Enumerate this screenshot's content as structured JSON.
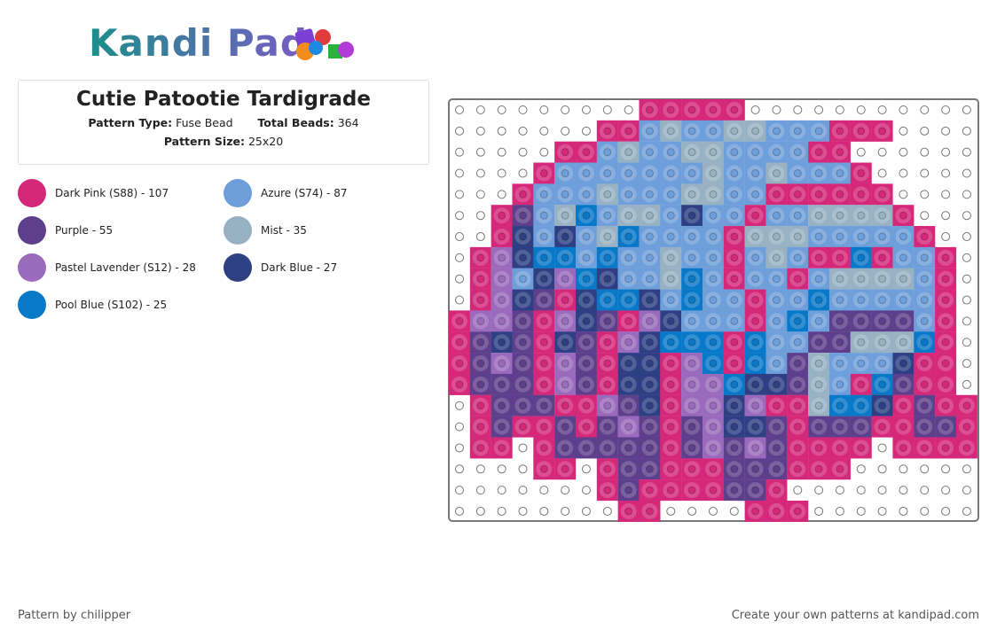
{
  "logo": "Kandi Pad",
  "header": {
    "title": "Cutie Patootie Tardigrade",
    "pattern_type_label": "Pattern Type:",
    "pattern_type": "Fuse Bead",
    "total_beads_label": "Total Beads:",
    "total_beads": "364",
    "pattern_size_label": "Pattern Size:",
    "pattern_size": "25x20"
  },
  "legend": [
    {
      "label": "Dark Pink (S88) - 107",
      "color": "#d6287a"
    },
    {
      "label": "Azure (S74) - 87",
      "color": "#6f9fdb"
    },
    {
      "label": "Purple - 55",
      "color": "#5e3f8c"
    },
    {
      "label": "Mist - 35",
      "color": "#98b2c4"
    },
    {
      "label": "Pastel Lavender (S12) - 28",
      "color": "#9a6bbd"
    },
    {
      "label": "Dark Blue - 27",
      "color": "#2e3f84"
    },
    {
      "label": "Pool Blue (S102) - 25",
      "color": "#0878c8"
    }
  ],
  "footer": {
    "author": "Pattern by chilipper",
    "cta": "Create your own patterns at kandipad.com"
  }
}
